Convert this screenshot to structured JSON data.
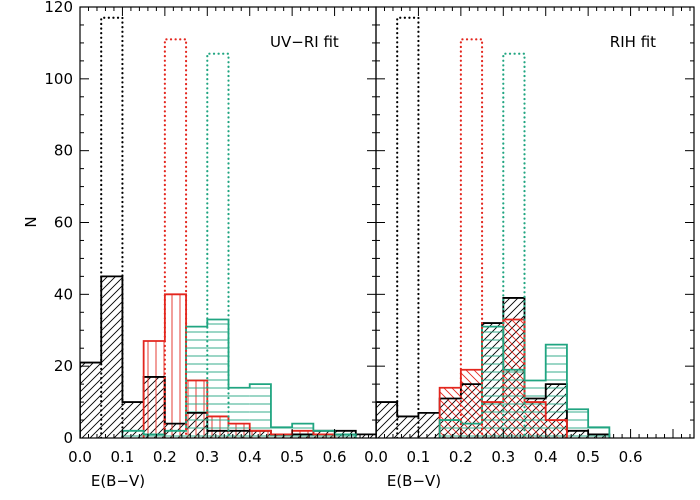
{
  "chart_data": {
    "type": "bar",
    "ylabel": "N",
    "xlabel": "E(B−V)",
    "ylim": [
      0,
      120
    ],
    "xlim": [
      0.0,
      0.7
    ],
    "y_ticks": [
      0,
      20,
      40,
      60,
      80,
      100,
      120
    ],
    "x_tick_labels": [
      "0.0",
      "0.1",
      "0.2",
      "0.3",
      "0.4",
      "0.5",
      "0.6"
    ],
    "bin_width": 0.05,
    "colors": {
      "black": "#000000",
      "red": "#e3261e",
      "green": "#20a581"
    },
    "panels": [
      {
        "label": "UV−RI  fit",
        "series": [
          {
            "color": "black",
            "style": "solid",
            "hatch": "diagonal-left",
            "bins_start": 0.0,
            "values": [
              21,
              45,
              10,
              17,
              4,
              7,
              2,
              2,
              2,
              1,
              1,
              2,
              2,
              1
            ]
          },
          {
            "color": "red",
            "style": "solid",
            "hatch": "vertical",
            "bins_start": 0.15,
            "values": [
              27,
              40,
              16,
              6,
              4,
              2,
              1,
              2,
              1
            ]
          },
          {
            "color": "green",
            "style": "solid",
            "hatch": "horizontal",
            "bins_start": 0.1,
            "values": [
              2,
              1,
              2,
              31,
              33,
              14,
              15,
              3,
              4,
              2,
              1
            ]
          },
          {
            "color": "black",
            "style": "dotted",
            "bins_start": 0.05,
            "values": [
              117
            ]
          },
          {
            "color": "red",
            "style": "dotted",
            "bins_start": 0.2,
            "values": [
              111
            ]
          },
          {
            "color": "green",
            "style": "dotted",
            "bins_start": 0.3,
            "values": [
              107
            ]
          }
        ]
      },
      {
        "label": "RIH  fit",
        "series": [
          {
            "color": "black",
            "style": "solid",
            "hatch": "diagonal-left",
            "bins_start": 0.0,
            "values": [
              10,
              6,
              7,
              11,
              15,
              32,
              39,
              11,
              15,
              2,
              1
            ]
          },
          {
            "color": "red",
            "style": "solid",
            "hatch": "diagonal-right",
            "bins_start": 0.15,
            "values": [
              14,
              19,
              10,
              33,
              10,
              5
            ]
          },
          {
            "color": "green",
            "style": "solid",
            "hatch": "horizontal",
            "bins_start": 0.15,
            "values": [
              5,
              4,
              31,
              19,
              16,
              26,
              8,
              3
            ]
          },
          {
            "color": "black",
            "style": "dotted",
            "bins_start": 0.05,
            "values": [
              117
            ]
          },
          {
            "color": "red",
            "style": "dotted",
            "bins_start": 0.2,
            "values": [
              111
            ]
          },
          {
            "color": "green",
            "style": "dotted",
            "bins_start": 0.3,
            "values": [
              107
            ]
          }
        ]
      }
    ]
  }
}
